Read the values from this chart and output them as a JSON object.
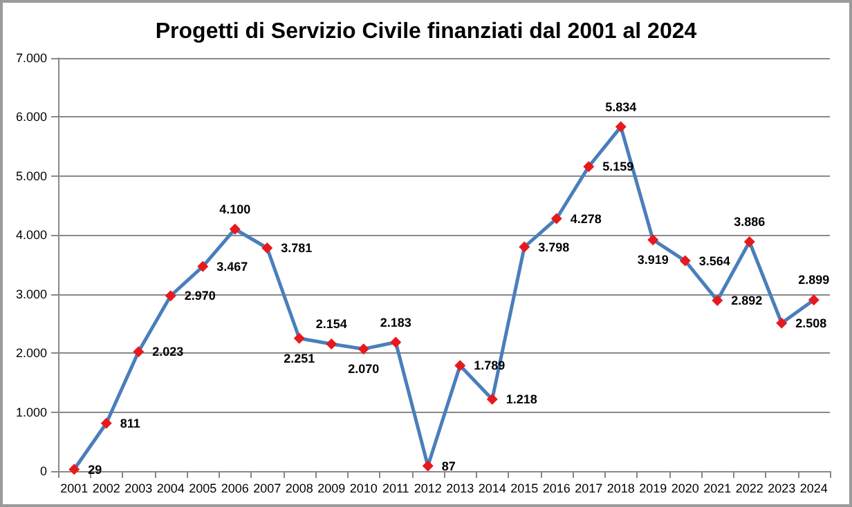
{
  "chart_data": {
    "type": "line",
    "title": "Progetti di Servizio Civile finanziati dal 2001 al 2024",
    "categories": [
      "2001",
      "2002",
      "2003",
      "2004",
      "2005",
      "2006",
      "2007",
      "2008",
      "2009",
      "2010",
      "2011",
      "2012",
      "2013",
      "2014",
      "2015",
      "2016",
      "2017",
      "2018",
      "2019",
      "2020",
      "2021",
      "2022",
      "2023",
      "2024"
    ],
    "series": [
      {
        "color": "#4a7ebb",
        "colors": [
          "#e8191c",
          "#e8191c",
          "#e8191c",
          "#e8191c",
          "#e8191c",
          "#e8191c",
          "#e8191c",
          "#e8191c",
          "#e8191c",
          "#e8191c",
          "#e8191c",
          "#e8191c",
          "#e8191c",
          "#e8191c",
          "#e8191c",
          "#e8191c",
          "#e8191c",
          "#e8191c",
          "#e8191c",
          "#e8191c",
          "#e8191c",
          "#e8191c",
          "#e8191c",
          "#e8191c"
        ],
        "values": [
          29,
          811,
          2023,
          2970,
          3467,
          4100,
          3781,
          2251,
          2154,
          2070,
          2183,
          87,
          1789,
          1218,
          3798,
          4278,
          5159,
          5834,
          3919,
          3564,
          2892,
          3886,
          2508,
          2899
        ],
        "value_labels": [
          "29",
          "811",
          "2.023",
          "2.970",
          "3.467",
          "4.100",
          "3.781",
          "2.251",
          "2.154",
          "2.070",
          "2.183",
          "87",
          "1.789",
          "1.218",
          "3.798",
          "4.278",
          "5.159",
          "5.834",
          "3.919",
          "3.564",
          "2.892",
          "3.886",
          "2.508",
          "2.899"
        ]
      }
    ],
    "ylim": [
      0,
      7000
    ],
    "yticks": [
      {
        "value": 0,
        "label": "0"
      },
      {
        "value": 1000,
        "label": "1.000"
      },
      {
        "value": 2000,
        "label": "2.000"
      },
      {
        "value": 3000,
        "label": "3.000"
      },
      {
        "value": 4000,
        "label": "4.000"
      },
      {
        "value": 5000,
        "label": "5.000"
      },
      {
        "value": 6000,
        "label": "6.000"
      },
      {
        "value": 7000,
        "label": "7.000"
      }
    ],
    "grid": "y",
    "marker": "diamond",
    "line_style": "solid"
  }
}
